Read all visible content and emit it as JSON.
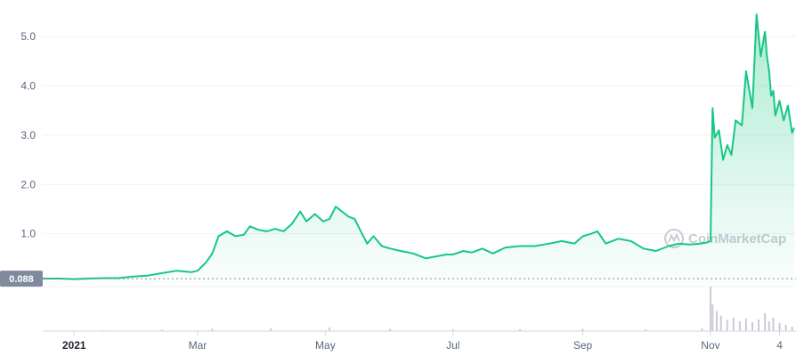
{
  "chart_data": {
    "type": "area",
    "title": "",
    "xlabel": "",
    "ylabel": "",
    "ylim": [
      0,
      5.6
    ],
    "grid": true,
    "line_color": "#16c784",
    "volume_color": "#c9ccd3",
    "baseline_color": "#808a9d",
    "y_ticks": [
      {
        "value": 1.0,
        "label": "1.0"
      },
      {
        "value": 2.0,
        "label": "2.0"
      },
      {
        "value": 3.0,
        "label": "3.0"
      },
      {
        "value": 4.0,
        "label": "4.0"
      },
      {
        "value": 5.0,
        "label": "5.0"
      }
    ],
    "x_ticks": [
      {
        "date": "2021-01-01",
        "label": "2021",
        "bold": true
      },
      {
        "date": "2021-03-01",
        "label": "Mar",
        "bold": false
      },
      {
        "date": "2021-05-01",
        "label": "May",
        "bold": false
      },
      {
        "date": "2021-07-01",
        "label": "Jul",
        "bold": false
      },
      {
        "date": "2021-09-01",
        "label": "Sep",
        "bold": false
      },
      {
        "date": "2021-11-01",
        "label": "Nov",
        "bold": false
      },
      {
        "date": "2021-12-04",
        "label": "4",
        "bold": false
      }
    ],
    "x_range": [
      "2020-12-17",
      "2021-12-11"
    ],
    "baseline": {
      "value": 0.088,
      "label": "0.088"
    },
    "watermark": "CoinMarketCap",
    "series": [
      {
        "x": [
          "2020-12-17",
          "2020-12-25",
          "2021-01-01",
          "2021-01-08",
          "2021-01-15",
          "2021-01-22",
          "2021-01-29",
          "2021-02-05",
          "2021-02-12",
          "2021-02-19",
          "2021-02-26",
          "2021-03-01",
          "2021-03-05",
          "2021-03-08",
          "2021-03-11",
          "2021-03-15",
          "2021-03-19",
          "2021-03-23",
          "2021-03-26",
          "2021-03-30",
          "2021-04-03",
          "2021-04-07",
          "2021-04-11",
          "2021-04-15",
          "2021-04-19",
          "2021-04-22",
          "2021-04-26",
          "2021-04-30",
          "2021-05-03",
          "2021-05-06",
          "2021-05-09",
          "2021-05-12",
          "2021-05-15",
          "2021-05-18",
          "2021-05-21",
          "2021-05-24",
          "2021-05-28",
          "2021-06-01",
          "2021-06-06",
          "2021-06-12",
          "2021-06-18",
          "2021-06-24",
          "2021-06-28",
          "2021-07-01",
          "2021-07-06",
          "2021-07-10",
          "2021-07-15",
          "2021-07-20",
          "2021-07-26",
          "2021-08-02",
          "2021-08-09",
          "2021-08-16",
          "2021-08-22",
          "2021-08-28",
          "2021-09-01",
          "2021-09-05",
          "2021-09-08",
          "2021-09-12",
          "2021-09-18",
          "2021-09-24",
          "2021-09-30",
          "2021-10-06",
          "2021-10-12",
          "2021-10-17",
          "2021-10-22",
          "2021-10-27",
          "2021-10-30",
          "2021-11-01",
          "2021-11-02",
          "2021-11-03",
          "2021-11-05",
          "2021-11-07",
          "2021-11-09",
          "2021-11-11",
          "2021-11-13",
          "2021-11-16",
          "2021-11-18",
          "2021-11-21",
          "2021-11-23",
          "2021-11-25",
          "2021-11-27",
          "2021-11-28",
          "2021-11-29",
          "2021-11-30",
          "2021-12-01",
          "2021-12-02",
          "2021-12-04",
          "2021-12-06",
          "2021-12-08",
          "2021-12-10",
          "2021-12-11"
        ],
        "values": [
          0.09,
          0.09,
          0.08,
          0.09,
          0.1,
          0.1,
          0.13,
          0.15,
          0.2,
          0.25,
          0.22,
          0.25,
          0.42,
          0.6,
          0.95,
          1.05,
          0.95,
          0.98,
          1.15,
          1.08,
          1.05,
          1.1,
          1.05,
          1.2,
          1.45,
          1.25,
          1.4,
          1.25,
          1.3,
          1.55,
          1.45,
          1.35,
          1.3,
          1.05,
          0.8,
          0.95,
          0.75,
          0.7,
          0.65,
          0.6,
          0.5,
          0.55,
          0.58,
          0.58,
          0.65,
          0.62,
          0.7,
          0.6,
          0.72,
          0.75,
          0.75,
          0.8,
          0.85,
          0.8,
          0.95,
          1.0,
          1.05,
          0.8,
          0.9,
          0.85,
          0.7,
          0.65,
          0.75,
          0.8,
          0.78,
          0.8,
          0.82,
          0.85,
          3.55,
          2.95,
          3.1,
          2.5,
          2.8,
          2.6,
          3.3,
          3.2,
          4.3,
          3.55,
          5.45,
          4.6,
          5.1,
          4.6,
          4.3,
          3.8,
          3.9,
          3.4,
          3.7,
          3.3,
          3.6,
          3.05,
          3.15
        ]
      }
    ],
    "volume": {
      "x": [
        "2021-01-15",
        "2021-02-12",
        "2021-03-08",
        "2021-04-05",
        "2021-05-03",
        "2021-06-01",
        "2021-07-01",
        "2021-08-02",
        "2021-09-01",
        "2021-10-01",
        "2021-10-28",
        "2021-11-01",
        "2021-11-02",
        "2021-11-04",
        "2021-11-06",
        "2021-11-09",
        "2021-11-12",
        "2021-11-15",
        "2021-11-18",
        "2021-11-21",
        "2021-11-24",
        "2021-11-27",
        "2021-11-29",
        "2021-12-01",
        "2021-12-04",
        "2021-12-07",
        "2021-12-10"
      ],
      "values": [
        0.02,
        0.03,
        0.05,
        0.06,
        0.08,
        0.05,
        0.04,
        0.04,
        0.05,
        0.04,
        0.06,
        1.0,
        0.6,
        0.45,
        0.35,
        0.25,
        0.3,
        0.22,
        0.28,
        0.2,
        0.26,
        0.4,
        0.22,
        0.3,
        0.18,
        0.14,
        0.1
      ]
    }
  }
}
